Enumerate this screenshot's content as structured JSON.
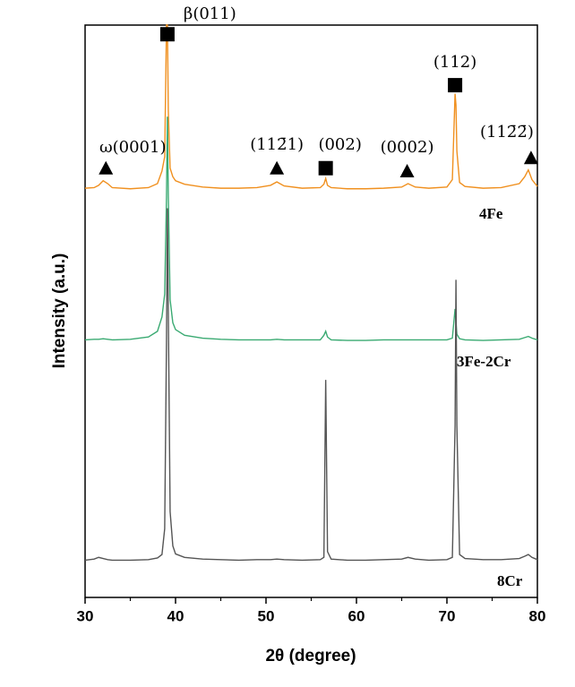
{
  "chart_data": {
    "type": "line",
    "xlabel": "2θ (degree)",
    "ylabel": "Intensity (a.u.)",
    "xlim": [
      30,
      80
    ],
    "xticks": [
      30,
      40,
      50,
      60,
      70,
      80
    ],
    "xminorticks": [
      35,
      45,
      55,
      65,
      75
    ],
    "ylim": [
      0,
      100
    ],
    "x": [
      30,
      31,
      31.5,
      32,
      32.5,
      33,
      35,
      37,
      38,
      38.5,
      38.8,
      39.0,
      39.1,
      39.2,
      39.4,
      39.7,
      40,
      41,
      43,
      45,
      47,
      49,
      50.5,
      51.2,
      52,
      54,
      56,
      56.4,
      56.6,
      56.8,
      57.2,
      59,
      61,
      63,
      65,
      65.7,
      66.5,
      68,
      70,
      70.6,
      70.9,
      71.0,
      71.1,
      71.4,
      72,
      74,
      76,
      78,
      78.6,
      79,
      79.4,
      80
    ],
    "series": [
      {
        "name": "4Fe",
        "color": "#f0901f",
        "values": [
          71.5,
          71.6,
          72,
          72.8,
          72.3,
          71.6,
          71.4,
          71.6,
          72.3,
          74.5,
          77,
          100,
          100,
          85,
          75,
          73.5,
          72.8,
          72.2,
          71.7,
          71.5,
          71.5,
          71.6,
          72,
          72.6,
          71.9,
          71.5,
          71.6,
          72.2,
          73.2,
          72.0,
          71.6,
          71.4,
          71.4,
          71.5,
          71.7,
          72.3,
          71.7,
          71.5,
          71.7,
          73,
          88,
          86,
          78,
          72.5,
          71.8,
          71.5,
          71.6,
          72.3,
          73.5,
          74.7,
          73,
          71.8
        ]
      },
      {
        "name": "3Fe-2Cr",
        "color": "#3aaa72",
        "values": [
          45,
          45.1,
          45.1,
          45.2,
          45.1,
          45,
          45.1,
          45.5,
          46.5,
          49,
          53,
          70,
          84,
          70,
          52,
          48,
          46.8,
          45.8,
          45.3,
          45.1,
          45,
          45,
          45,
          45.1,
          45,
          45,
          45,
          45.8,
          46.5,
          45.5,
          45,
          44.9,
          44.9,
          45,
          45,
          45,
          45,
          45,
          45,
          45.3,
          50.4,
          48,
          46,
          45.2,
          45,
          44.9,
          45,
          45.1,
          45.4,
          45.6,
          45.3,
          45
        ]
      },
      {
        "name": "8Cr",
        "color": "#555555",
        "values": [
          6.5,
          6.7,
          7.0,
          6.8,
          6.6,
          6.5,
          6.5,
          6.6,
          6.9,
          7.5,
          12,
          45,
          68,
          50,
          15,
          9,
          7.6,
          7,
          6.7,
          6.6,
          6.5,
          6.6,
          6.6,
          6.7,
          6.6,
          6.5,
          6.6,
          7,
          38,
          8,
          6.7,
          6.5,
          6.5,
          6.6,
          6.7,
          7,
          6.7,
          6.5,
          6.6,
          7,
          30,
          55.5,
          30,
          7.5,
          6.8,
          6.6,
          6.6,
          6.8,
          7.2,
          7.5,
          7,
          6.6
        ]
      }
    ],
    "peaks": [
      {
        "label": "β(011)",
        "marker": "square",
        "x": 39.1,
        "y": 98.4
      },
      {
        "label": "ω(0001)",
        "marker": "triangle",
        "x": 32.3,
        "y": 75
      },
      {
        "label": "(112̄1)",
        "marker": "triangle",
        "x": 51.2,
        "y": 75
      },
      {
        "label": "(002)",
        "marker": "square",
        "x": 56.6,
        "y": 75
      },
      {
        "label": "(0002)",
        "marker": "triangle",
        "x": 65.6,
        "y": 74.5
      },
      {
        "label": "(112)",
        "marker": "square",
        "x": 70.9,
        "y": 89.5
      },
      {
        "label": "(112̄2̄)",
        "marker": "triangle",
        "x": 79.3,
        "y": 76.8
      }
    ]
  }
}
